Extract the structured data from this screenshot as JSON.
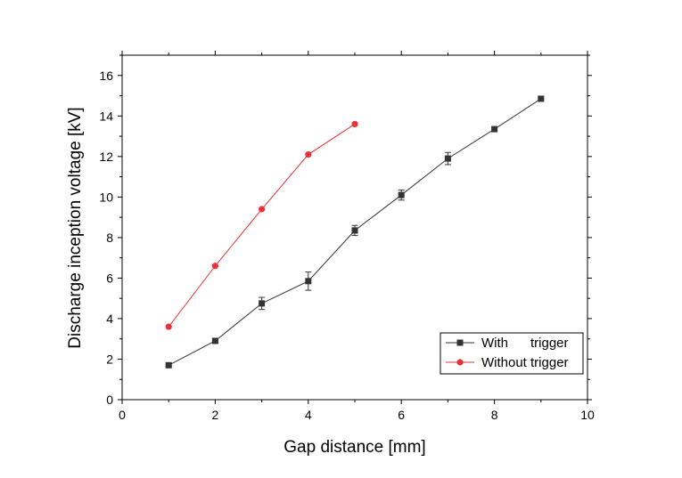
{
  "chart_data": {
    "type": "line",
    "xlabel": "Gap distance [mm]",
    "ylabel": "Discharge inception voltage [kV]",
    "xlim": [
      0,
      10
    ],
    "ylim": [
      0,
      17
    ],
    "xticks": [
      0,
      2,
      4,
      6,
      8,
      10
    ],
    "yticks": [
      0,
      2,
      4,
      6,
      8,
      10,
      12,
      14,
      16
    ],
    "grid": false,
    "legend_position": "bottom-right",
    "series": [
      {
        "name": "With      trigger",
        "color": "#333333",
        "marker": "square",
        "x": [
          1,
          2,
          3,
          4,
          5,
          6,
          7,
          8,
          9
        ],
        "y": [
          1.7,
          2.9,
          4.75,
          5.85,
          8.35,
          10.1,
          11.9,
          13.35,
          14.85
        ],
        "error": [
          0.05,
          0.1,
          0.3,
          0.45,
          0.25,
          0.25,
          0.3,
          0.08,
          0.08
        ]
      },
      {
        "name": "Without trigger",
        "color": "#e8333a",
        "marker": "circle",
        "x": [
          1,
          2,
          3,
          4,
          5
        ],
        "y": [
          3.6,
          6.6,
          9.4,
          12.1,
          13.6
        ],
        "error": [
          0,
          0,
          0,
          0,
          0
        ]
      }
    ]
  }
}
